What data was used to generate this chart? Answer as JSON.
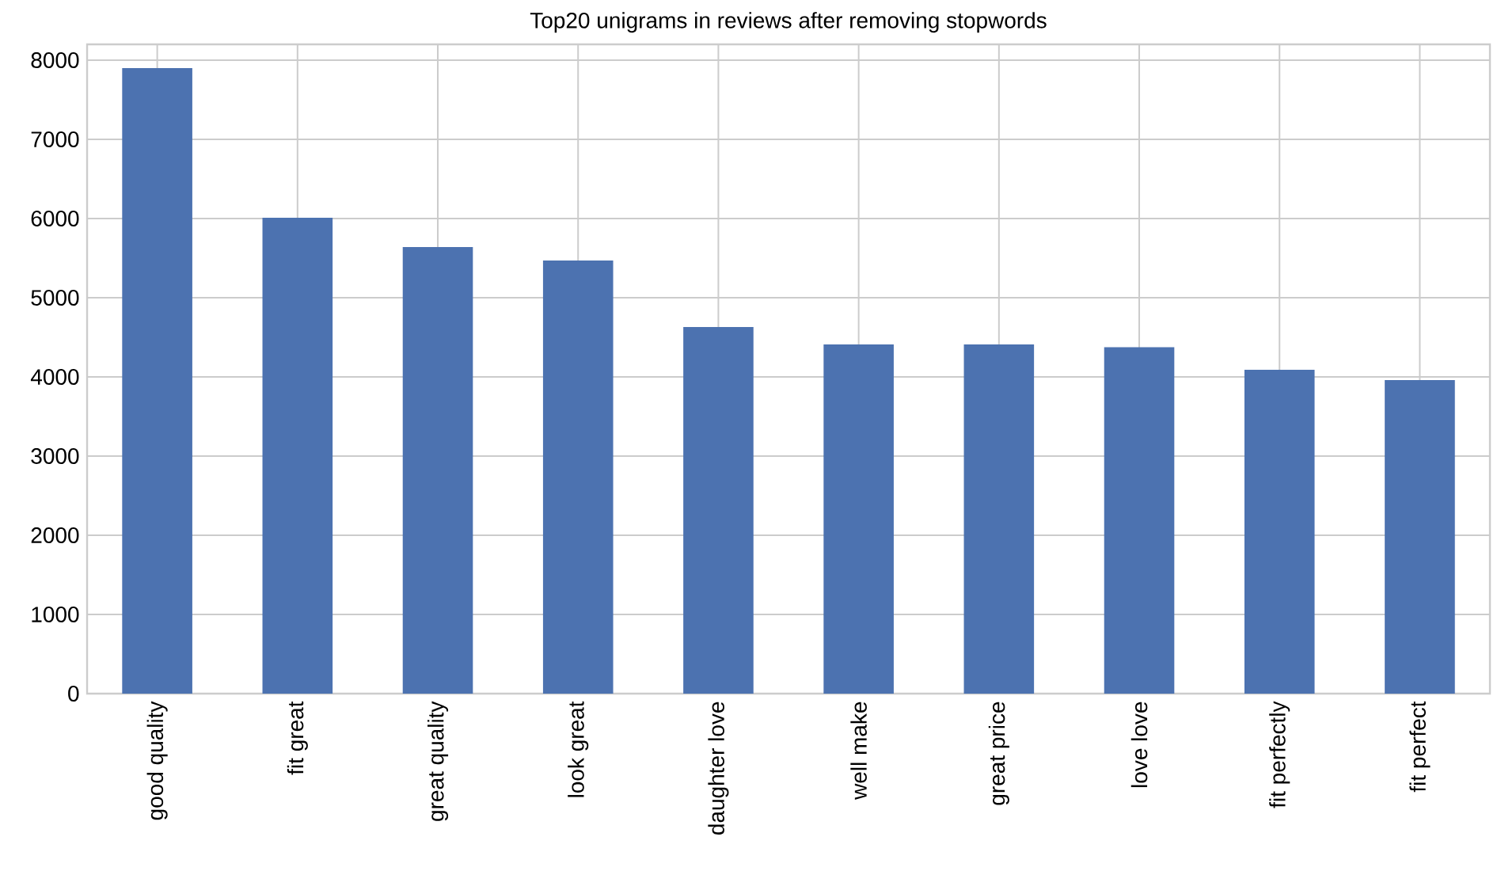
{
  "chart_data": {
    "type": "bar",
    "title": "Top20 unigrams in reviews after removing stopwords",
    "categories": [
      "good quality",
      "fit great",
      "great quality",
      "look great",
      "daughter love",
      "well make",
      "great price",
      "love love",
      "fit perfectly",
      "fit perfect"
    ],
    "values": [
      7900,
      6010,
      5640,
      5470,
      4630,
      4410,
      4410,
      4375,
      4090,
      3960
    ],
    "color": "#4c72b0",
    "ylim": [
      0,
      8200
    ],
    "yticks": [
      0,
      1000,
      2000,
      3000,
      4000,
      5000,
      6000,
      7000,
      8000
    ],
    "grid": true
  }
}
